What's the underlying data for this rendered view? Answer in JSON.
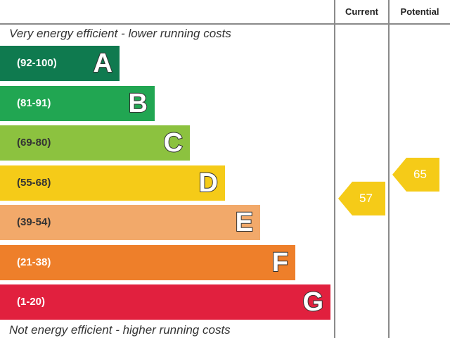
{
  "header": {
    "current_label": "Current",
    "potential_label": "Potential"
  },
  "captions": {
    "top": "Very energy efficient - lower running costs",
    "bottom": "Not energy efficient - higher running costs"
  },
  "chart_data": {
    "type": "bar",
    "bands": [
      {
        "range": "(92-100)",
        "letter": "A",
        "min": 92,
        "max": 100,
        "color": "#0f7a4f"
      },
      {
        "range": "(81-91)",
        "letter": "B",
        "min": 81,
        "max": 91,
        "color": "#21a652"
      },
      {
        "range": "(69-80)",
        "letter": "C",
        "min": 69,
        "max": 80,
        "color": "#8cc23f"
      },
      {
        "range": "(55-68)",
        "letter": "D",
        "min": 55,
        "max": 68,
        "color": "#f5cb18"
      },
      {
        "range": "(39-54)",
        "letter": "E",
        "min": 39,
        "max": 54,
        "color": "#f2a96a"
      },
      {
        "range": "(21-38)",
        "letter": "F",
        "min": 21,
        "max": 38,
        "color": "#ee7f2a"
      },
      {
        "range": "(1-20)",
        "letter": "G",
        "min": 1,
        "max": 20,
        "color": "#e1203e"
      }
    ],
    "ratings": {
      "current": {
        "value": 57,
        "color": "#f5cb18"
      },
      "potential": {
        "value": 65,
        "color": "#f5cb18"
      }
    }
  }
}
